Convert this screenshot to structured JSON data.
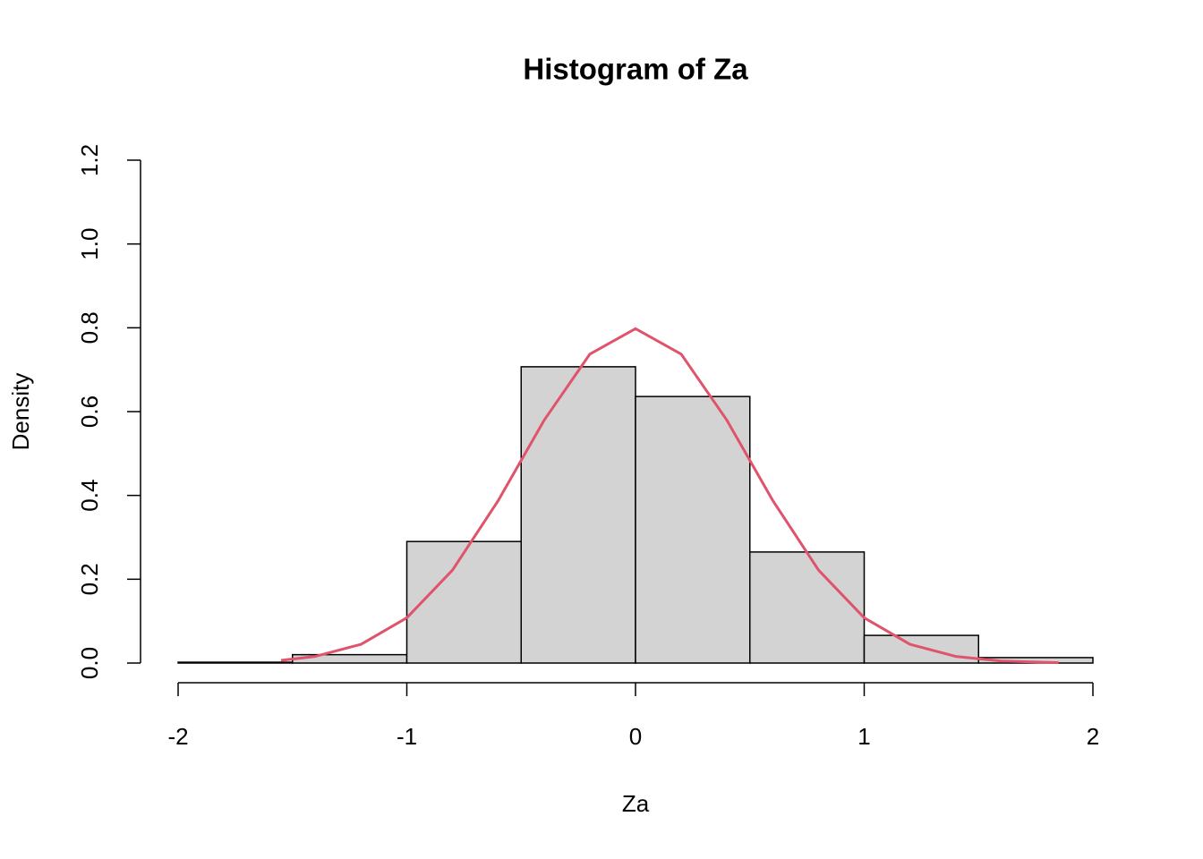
{
  "chart_data": {
    "type": "histogram",
    "title": "Histogram of Za",
    "x_label": "Za",
    "y_label": "Density",
    "bins": [
      -2,
      -1.5,
      -1,
      -0.5,
      0,
      0.5,
      1,
      1.5,
      2
    ],
    "values": [
      0.002,
      0.02,
      0.29,
      0.707,
      0.636,
      0.265,
      0.066,
      0.013
    ],
    "color": "#d3d3d3",
    "xlim": [
      -2,
      2
    ],
    "ylim": [
      0,
      1.2
    ],
    "xticks": [
      -2,
      -1,
      0,
      1,
      2
    ],
    "yticks": [
      {
        "value": 0,
        "label": "0.0"
      },
      0.2,
      0.4,
      0.6,
      0.8,
      {
        "value": 1,
        "label": "1.0"
      },
      1.2
    ],
    "curve": {
      "type": "line",
      "color": "#df536b",
      "x": [
        -1.55,
        -1.4,
        -1.2,
        -1.0,
        -0.8,
        -0.6,
        -0.4,
        -0.2,
        0,
        0.2,
        0.4,
        0.6,
        0.8,
        1.0,
        1.2,
        1.4,
        1.6,
        1.85
      ],
      "values": [
        0.0065,
        0.0158,
        0.0448,
        0.108,
        0.222,
        0.388,
        0.579,
        0.737,
        0.798,
        0.737,
        0.579,
        0.388,
        0.222,
        0.108,
        0.0448,
        0.0158,
        0.0048,
        0.00085
      ]
    }
  }
}
